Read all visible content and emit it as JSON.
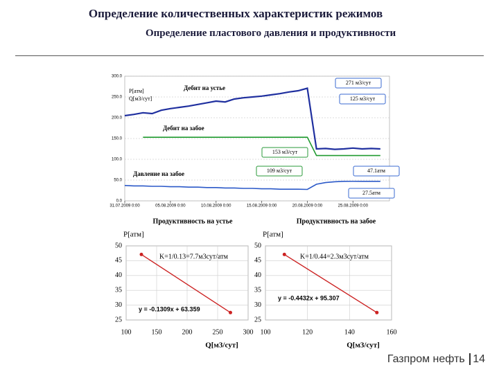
{
  "header": {
    "title": "Определение количественных характеристик режимов",
    "subtitle": "Определение пластового давления и продуктивности"
  },
  "chart_data": [
    {
      "type": "line",
      "y_label": "P[атм]\nQ[м3/сут]",
      "x": [
        "2009-07-31",
        "2009-08-01",
        "2009-08-02",
        "2009-08-03",
        "2009-08-04",
        "2009-08-05",
        "2009-08-06",
        "2009-08-07",
        "2009-08-08",
        "2009-08-09",
        "2009-08-10",
        "2009-08-11",
        "2009-08-12",
        "2009-08-13",
        "2009-08-14",
        "2009-08-15",
        "2009-08-16",
        "2009-08-17",
        "2009-08-18",
        "2009-08-19",
        "2009-08-20",
        "2009-08-21",
        "2009-08-22",
        "2009-08-23",
        "2009-08-24",
        "2009-08-25",
        "2009-08-26",
        "2009-08-27",
        "2009-08-28"
      ],
      "series": [
        {
          "name": "Дебит на устье",
          "color": "#1f2f9f",
          "values": [
            205,
            208,
            212,
            210,
            218,
            222,
            225,
            228,
            232,
            236,
            240,
            238,
            245,
            248,
            250,
            252,
            255,
            258,
            262,
            265,
            271,
            125,
            126,
            124,
            125,
            127,
            125,
            126,
            125
          ]
        },
        {
          "name": "Дебит на забое",
          "color": "#1f9a2f",
          "values": [
            null,
            null,
            153,
            153,
            153,
            153,
            153,
            153,
            153,
            153,
            153,
            153,
            153,
            153,
            153,
            153,
            153,
            153,
            153,
            153,
            153,
            109,
            109,
            109,
            109,
            109,
            109,
            109,
            109
          ]
        },
        {
          "name": "Давление на забое",
          "color": "#2a58c8",
          "values": [
            37,
            36,
            36,
            35,
            35,
            34,
            34,
            33,
            33,
            32,
            32,
            31,
            31,
            30,
            30,
            29,
            29,
            28,
            28,
            28,
            27.5,
            40,
            44,
            46,
            47,
            47.1,
            47,
            47,
            47
          ]
        }
      ],
      "annotations": [
        "271 м3/сут",
        "125 м3/сут",
        "153 м3/сут",
        "109 м3/сут",
        "47.1атм",
        "27.5атм"
      ],
      "xlim": [
        "2009-07-31",
        "2009-08-29"
      ],
      "xticks": [
        {
          "value": "2009-07-31",
          "label": "31.07.2009 0:00"
        },
        {
          "value": "2009-08-05",
          "label": "05.08.2009 0:00"
        },
        {
          "value": "2009-08-10",
          "label": "10.08.2009 0:00"
        },
        {
          "value": "2009-08-15",
          "label": "15.08.2009 0:00"
        },
        {
          "value": "2009-08-20",
          "label": "20.08.2009 0:00"
        },
        {
          "value": "2009-08-25",
          "label": "25.08.2009 0:00"
        }
      ],
      "ylim": [
        0,
        300
      ],
      "yticks": [
        {
          "value": 0,
          "label": "0.0"
        },
        {
          "value": 50,
          "label": "50.0"
        },
        {
          "value": 100,
          "label": "100.0"
        },
        {
          "value": 150,
          "label": "150.0"
        },
        {
          "value": 200,
          "label": "200.0"
        },
        {
          "value": 250,
          "label": "250.0"
        },
        {
          "value": 300,
          "label": "300.0"
        }
      ],
      "grid": true
    },
    {
      "type": "scatter",
      "title": "Продуктивность на устье",
      "x_label": "Q[м3/сут]",
      "y_label": "P[атм]",
      "color": "#cc2222",
      "x": [
        125,
        271
      ],
      "values": [
        47.1,
        27.5
      ],
      "equation": "y = -0.1309x + 63.359",
      "annotation": "K=1/0.13=7.7м3сут/атм",
      "xlim": [
        100,
        300
      ],
      "xticks": [
        100,
        150,
        200,
        250,
        300
      ],
      "ylim": [
        25,
        50
      ],
      "yticks": [
        25,
        30,
        35,
        40,
        45,
        50
      ],
      "grid": true
    },
    {
      "type": "scatter",
      "title": "Продуктивность на забое",
      "x_label": "Q[м3/сут]",
      "y_label": "P[атм]",
      "color": "#cc2222",
      "x": [
        109,
        153
      ],
      "values": [
        47.1,
        27.5
      ],
      "equation": "y = -0.4432x + 95.307",
      "annotation": "K=1/0.44=2.3м3сут/атм",
      "xlim": [
        100,
        160
      ],
      "xticks": [
        100,
        120,
        140,
        160
      ],
      "ylim": [
        25,
        50
      ],
      "yticks": [
        25,
        30,
        35,
        40,
        45,
        50
      ],
      "grid": true
    }
  ],
  "footer": {
    "company": "Газпром нефть",
    "page": "14"
  }
}
